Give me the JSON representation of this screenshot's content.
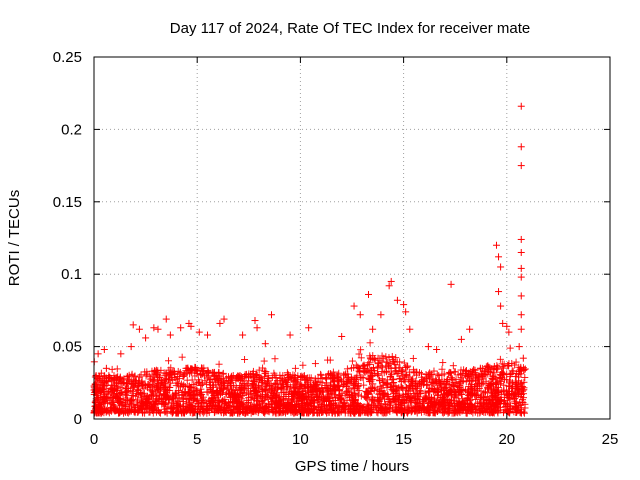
{
  "chart_data": {
    "type": "scatter",
    "title": "Day 117 of 2024, Rate Of TEC Index for receiver mate",
    "xlabel": "GPS time / hours",
    "ylabel": "ROTI / TECUs",
    "xlim": [
      0,
      25
    ],
    "ylim": [
      0,
      0.25
    ],
    "xticks": [
      0,
      5,
      10,
      15,
      20,
      25
    ],
    "xtick_labels": [
      "0",
      "5",
      "10",
      "15",
      "20",
      "25"
    ],
    "yticks": [
      0,
      0.05,
      0.1,
      0.15,
      0.2,
      0.25
    ],
    "ytick_labels": [
      "0",
      "0.05",
      "0.1",
      "0.15",
      "0.2",
      "0.25"
    ],
    "grid": true,
    "marker": "+",
    "marker_color": "#ff0000",
    "series": [
      {
        "name": "ROTI",
        "points": [
          [
            0.1,
            0.03
          ],
          [
            0.2,
            0.045
          ],
          [
            0.3,
            0.02
          ],
          [
            0.5,
            0.048
          ],
          [
            0.6,
            0.035
          ],
          [
            1.3,
            0.045
          ],
          [
            1.8,
            0.05
          ],
          [
            1.9,
            0.065
          ],
          [
            2.2,
            0.062
          ],
          [
            2.5,
            0.056
          ],
          [
            2.9,
            0.063
          ],
          [
            3.1,
            0.062
          ],
          [
            3.5,
            0.069
          ],
          [
            3.7,
            0.058
          ],
          [
            4.2,
            0.063
          ],
          [
            4.6,
            0.066
          ],
          [
            4.7,
            0.064
          ],
          [
            5.1,
            0.06
          ],
          [
            5.5,
            0.058
          ],
          [
            6.1,
            0.066
          ],
          [
            6.3,
            0.069
          ],
          [
            7.2,
            0.058
          ],
          [
            7.8,
            0.068
          ],
          [
            7.9,
            0.063
          ],
          [
            8.3,
            0.052
          ],
          [
            8.6,
            0.072
          ],
          [
            9.5,
            0.058
          ],
          [
            10.4,
            0.063
          ],
          [
            12.0,
            0.057
          ],
          [
            12.6,
            0.078
          ],
          [
            12.9,
            0.072
          ],
          [
            13.3,
            0.086
          ],
          [
            13.5,
            0.062
          ],
          [
            13.9,
            0.072
          ],
          [
            14.3,
            0.092
          ],
          [
            14.4,
            0.095
          ],
          [
            14.7,
            0.082
          ],
          [
            15.0,
            0.079
          ],
          [
            15.1,
            0.074
          ],
          [
            15.3,
            0.062
          ],
          [
            16.2,
            0.05
          ],
          [
            16.6,
            0.048
          ],
          [
            17.3,
            0.093
          ],
          [
            17.8,
            0.055
          ],
          [
            18.2,
            0.062
          ],
          [
            19.5,
            0.12
          ],
          [
            19.6,
            0.112
          ],
          [
            19.7,
            0.105
          ],
          [
            19.6,
            0.088
          ],
          [
            19.7,
            0.078
          ],
          [
            19.8,
            0.066
          ],
          [
            20.0,
            0.064
          ],
          [
            20.1,
            0.06
          ],
          [
            20.7,
            0.216
          ],
          [
            20.7,
            0.188
          ],
          [
            20.7,
            0.175
          ],
          [
            20.7,
            0.124
          ],
          [
            20.7,
            0.115
          ],
          [
            20.7,
            0.104
          ],
          [
            20.7,
            0.098
          ],
          [
            20.7,
            0.085
          ],
          [
            20.7,
            0.072
          ],
          [
            20.7,
            0.062
          ],
          [
            20.6,
            0.05
          ],
          [
            20.8,
            0.042
          ]
        ]
      }
    ]
  }
}
